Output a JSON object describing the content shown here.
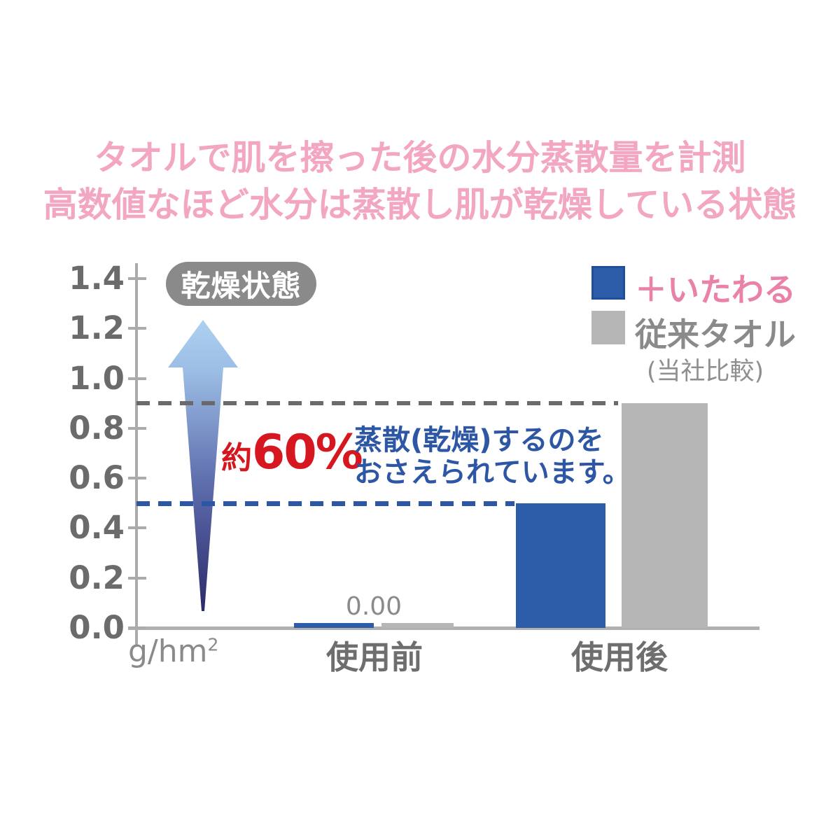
{
  "title": {
    "line1": "タオルで肌を擦った後の水分蒸散量を計測",
    "line2": "高数値なほど水分は蒸散し肌が乾燥している状態"
  },
  "badge": {
    "label": "乾燥状態"
  },
  "legend": {
    "items": [
      {
        "label": "＋いたわる",
        "swatch_color": "#2d5ca8",
        "label_color": "#e981a8"
      },
      {
        "label": "従来タオル",
        "swatch_color": "#b6b6b6",
        "label_color": "#8a8a8a"
      }
    ],
    "note": "(当社比較)"
  },
  "annotation": {
    "approx": "約",
    "percent": "60%",
    "line1": "蒸散(乾燥)するのを",
    "line2": "おさえられています。"
  },
  "axis": {
    "unit_base": "g/hm",
    "unit_sup": "2"
  },
  "colors": {
    "title_pink": "#f3a6c2",
    "legend_pink": "#e981a8",
    "red": "#d6171f",
    "deep_blue": "#2d56a5",
    "bar_blue": "#2d5ca8",
    "bar_gray": "#b6b6b6",
    "badge_gray": "#8a8a8a",
    "axis_gray": "#ababab",
    "tick_label_gray": "#6b6b6b"
  },
  "chart_data": {
    "type": "bar",
    "categories": [
      "使用前",
      "使用後"
    ],
    "series": [
      {
        "name": "＋いたわる",
        "color": "#2d5ca8",
        "values": [
          0.0,
          0.5
        ]
      },
      {
        "name": "従来タオル",
        "color": "#b6b6b6",
        "values": [
          0.0,
          0.9
        ]
      }
    ],
    "value_label": {
      "text": "0.00",
      "category": "使用前"
    },
    "unit": "g/hm²",
    "ylim": [
      0,
      1.4
    ],
    "ytick_step": 0.2,
    "yticks": [
      "1.4",
      "1.2",
      "1.0",
      "0.8",
      "0.6",
      "0.4",
      "0.2",
      "0.0"
    ],
    "grid": false,
    "legend_position": "top-right",
    "reference_lines": [
      {
        "value": 0.9,
        "color": "#6a6a6a",
        "style": "dashed",
        "series": "従来タオル"
      },
      {
        "value": 0.5,
        "color": "#2d56a5",
        "style": "dashed",
        "series": "＋いたわる"
      }
    ],
    "annotations": [
      "乾燥状態",
      "約60%",
      "蒸散(乾燥)するのを おさえられています。"
    ]
  }
}
